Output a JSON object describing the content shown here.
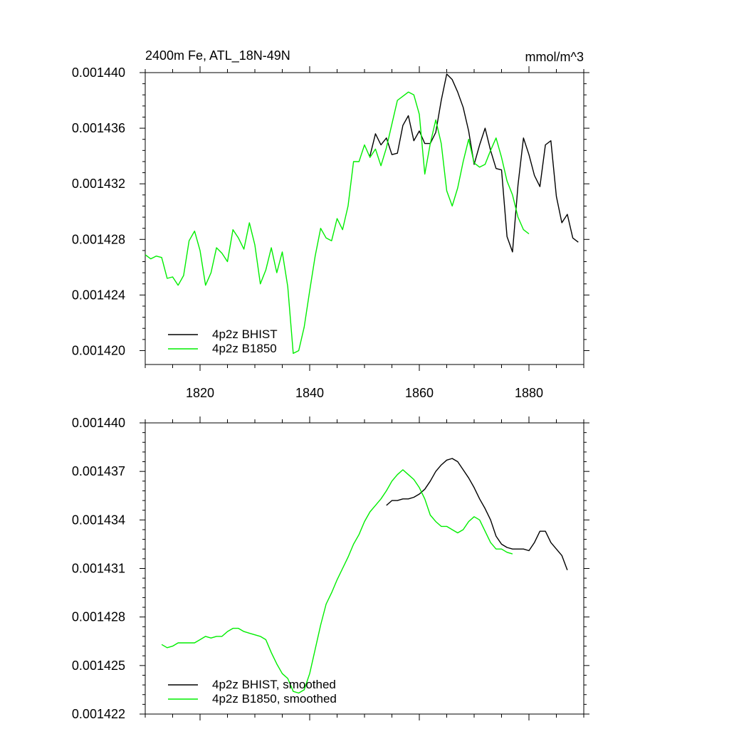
{
  "chart_data": [
    {
      "type": "line",
      "title": "2400m Fe, ATL_18N-49N",
      "units": "mmol/m^3",
      "xlabel": "",
      "ylabel": "",
      "xlim": [
        1810,
        1890
      ],
      "ylim": [
        0.001419,
        0.00144
      ],
      "x_ticks": [
        1820,
        1840,
        1860,
        1880
      ],
      "x_tick_labels": [
        "1820",
        "1840",
        "1860",
        "1880"
      ],
      "y_ticks": [
        0.00142,
        0.001424,
        0.001428,
        0.001432,
        0.001436,
        0.00144
      ],
      "y_tick_labels": [
        "0.001420",
        "0.001424",
        "0.001428",
        "0.001432",
        "0.001436",
        "0.001440"
      ],
      "grid": false,
      "legend_position": "bottom-left",
      "series": [
        {
          "name": "4p2z BHIST",
          "color": "#000000",
          "x": [
            1851,
            1852,
            1853,
            1854,
            1855,
            1856,
            1857,
            1858,
            1859,
            1860,
            1861,
            1862,
            1863,
            1864,
            1865,
            1866,
            1867,
            1868,
            1869,
            1870,
            1871,
            1872,
            1873,
            1874,
            1875,
            1876,
            1877,
            1878,
            1879,
            1880,
            1881,
            1882,
            1883,
            1884,
            1885,
            1886,
            1887,
            1888,
            1889
          ],
          "values": [
            0.001434,
            0.0014356,
            0.0014348,
            0.0014353,
            0.0014341,
            0.0014342,
            0.0014362,
            0.0014369,
            0.0014351,
            0.0014358,
            0.0014349,
            0.0014349,
            0.0014357,
            0.001438,
            0.0014399,
            0.0014395,
            0.0014386,
            0.0014375,
            0.0014358,
            0.0014334,
            0.0014348,
            0.001436,
            0.0014344,
            0.0014331,
            0.001433,
            0.0014282,
            0.0014271,
            0.0014319,
            0.0014353,
            0.0014341,
            0.0014326,
            0.0014318,
            0.0014348,
            0.0014351,
            0.0014311,
            0.0014292,
            0.0014298,
            0.0014281,
            0.0014278
          ]
        },
        {
          "name": "4p2z B1850",
          "color": "#00ee00",
          "x": [
            1810,
            1811,
            1812,
            1813,
            1814,
            1815,
            1816,
            1817,
            1818,
            1819,
            1820,
            1821,
            1822,
            1823,
            1824,
            1825,
            1826,
            1827,
            1828,
            1829,
            1830,
            1831,
            1832,
            1833,
            1834,
            1835,
            1836,
            1837,
            1838,
            1839,
            1840,
            1841,
            1842,
            1843,
            1844,
            1845,
            1846,
            1847,
            1848,
            1849,
            1850,
            1851,
            1852,
            1853,
            1854,
            1855,
            1856,
            1857,
            1858,
            1859,
            1860,
            1861,
            1862,
            1863,
            1864,
            1865,
            1866,
            1867,
            1868,
            1869,
            1870,
            1871,
            1872,
            1873,
            1874,
            1875,
            1876,
            1877,
            1878,
            1879,
            1880
          ],
          "values": [
            0.0014269,
            0.0014266,
            0.0014268,
            0.0014267,
            0.0014252,
            0.0014253,
            0.0014247,
            0.0014254,
            0.0014279,
            0.0014286,
            0.0014272,
            0.0014247,
            0.0014256,
            0.0014274,
            0.001427,
            0.0014264,
            0.0014287,
            0.0014281,
            0.0014273,
            0.0014292,
            0.0014276,
            0.0014248,
            0.0014258,
            0.0014274,
            0.0014256,
            0.0014271,
            0.0014246,
            0.0014198,
            0.00142,
            0.0014217,
            0.0014243,
            0.0014268,
            0.0014288,
            0.0014281,
            0.0014279,
            0.0014295,
            0.0014287,
            0.0014304,
            0.0014336,
            0.0014336,
            0.0014348,
            0.0014339,
            0.0014345,
            0.0014333,
            0.0014346,
            0.0014363,
            0.001438,
            0.0014383,
            0.0014386,
            0.0014384,
            0.001437,
            0.0014327,
            0.0014349,
            0.0014366,
            0.0014349,
            0.0014315,
            0.0014304,
            0.0014317,
            0.0014336,
            0.0014352,
            0.0014335,
            0.0014332,
            0.0014334,
            0.0014344,
            0.0014353,
            0.0014339,
            0.0014322,
            0.0014312,
            0.0014296,
            0.0014287,
            0.0014284
          ]
        }
      ]
    },
    {
      "type": "line",
      "title": "",
      "xlabel": "",
      "ylabel": "",
      "xlim": [
        1810,
        1890
      ],
      "ylim": [
        0.001422,
        0.00144
      ],
      "x_ticks": [
        1820,
        1840,
        1860,
        1880
      ],
      "x_tick_labels": [],
      "y_ticks": [
        0.001422,
        0.001425,
        0.001428,
        0.001431,
        0.001434,
        0.001437,
        0.00144
      ],
      "y_tick_labels": [
        "0.001422",
        "0.001425",
        "0.001428",
        "0.001431",
        "0.001434",
        "0.001437",
        "0.001440"
      ],
      "grid": false,
      "legend_position": "bottom-left",
      "series": [
        {
          "name": "4p2z BHIST, smoothed",
          "color": "#000000",
          "x": [
            1854,
            1855,
            1856,
            1857,
            1858,
            1859,
            1860,
            1861,
            1862,
            1863,
            1864,
            1865,
            1866,
            1867,
            1868,
            1869,
            1870,
            1871,
            1872,
            1873,
            1874,
            1875,
            1876,
            1877,
            1878,
            1879,
            1880,
            1881,
            1882,
            1883,
            1884,
            1885,
            1886,
            1887
          ],
          "values": [
            0.0014349,
            0.0014352,
            0.0014352,
            0.0014353,
            0.0014353,
            0.0014354,
            0.0014356,
            0.0014359,
            0.0014364,
            0.001437,
            0.0014374,
            0.0014377,
            0.0014378,
            0.0014376,
            0.0014371,
            0.0014366,
            0.001436,
            0.0014353,
            0.0014347,
            0.001434,
            0.001433,
            0.0014325,
            0.0014323,
            0.0014322,
            0.0014322,
            0.0014322,
            0.0014321,
            0.0014326,
            0.0014333,
            0.0014333,
            0.0014326,
            0.0014322,
            0.0014318,
            0.0014309
          ]
        },
        {
          "name": "4p2z B1850, smoothed",
          "color": "#00ee00",
          "x": [
            1813,
            1814,
            1815,
            1816,
            1817,
            1818,
            1819,
            1820,
            1821,
            1822,
            1823,
            1824,
            1825,
            1826,
            1827,
            1828,
            1829,
            1830,
            1831,
            1832,
            1833,
            1834,
            1835,
            1836,
            1837,
            1838,
            1839,
            1840,
            1841,
            1842,
            1843,
            1844,
            1845,
            1846,
            1847,
            1848,
            1849,
            1850,
            1851,
            1852,
            1853,
            1854,
            1855,
            1856,
            1857,
            1858,
            1859,
            1860,
            1861,
            1862,
            1863,
            1864,
            1865,
            1866,
            1867,
            1868,
            1869,
            1870,
            1871,
            1872,
            1873,
            1874,
            1875,
            1876,
            1877
          ],
          "values": [
            0.0014263,
            0.0014261,
            0.0014262,
            0.0014264,
            0.0014264,
            0.0014264,
            0.0014264,
            0.0014266,
            0.0014268,
            0.0014267,
            0.0014268,
            0.0014268,
            0.0014271,
            0.0014273,
            0.0014273,
            0.0014271,
            0.001427,
            0.0014269,
            0.0014268,
            0.0014266,
            0.0014258,
            0.0014251,
            0.0014245,
            0.0014242,
            0.0014234,
            0.0014233,
            0.0014235,
            0.0014245,
            0.001426,
            0.0014275,
            0.0014288,
            0.0014295,
            0.0014303,
            0.001431,
            0.0014317,
            0.0014325,
            0.0014331,
            0.0014339,
            0.0014345,
            0.0014349,
            0.0014353,
            0.0014358,
            0.0014364,
            0.0014368,
            0.0014371,
            0.0014368,
            0.0014365,
            0.001436,
            0.0014353,
            0.0014343,
            0.0014339,
            0.0014336,
            0.0014336,
            0.0014334,
            0.0014332,
            0.0014334,
            0.0014339,
            0.0014342,
            0.001434,
            0.0014333,
            0.0014326,
            0.0014322,
            0.0014322,
            0.001432,
            0.0014319
          ]
        }
      ]
    }
  ]
}
